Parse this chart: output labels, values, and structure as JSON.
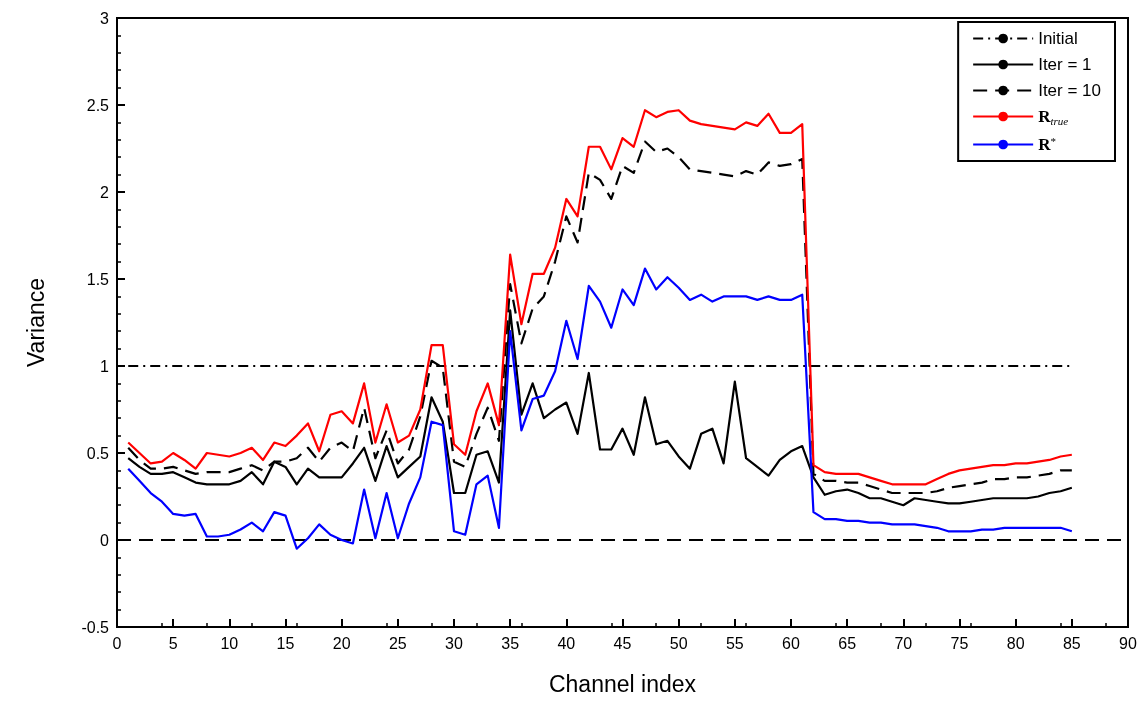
{
  "chart_data": {
    "type": "line",
    "xlabel": "Channel index",
    "ylabel": "Variance",
    "xlim": [
      0,
      90
    ],
    "xticks": [
      0,
      5,
      10,
      15,
      20,
      25,
      30,
      35,
      40,
      45,
      50,
      55,
      60,
      65,
      70,
      75,
      80,
      85,
      90
    ],
    "ylim": [
      -0.5,
      3
    ],
    "yticks": [
      -0.5,
      0,
      0.5,
      1,
      1.5,
      2,
      2.5,
      3
    ],
    "grid": false,
    "legend": "top right",
    "marker": "none",
    "x": [
      1,
      2,
      3,
      4,
      5,
      6,
      7,
      8,
      9,
      10,
      11,
      12,
      13,
      14,
      15,
      16,
      17,
      18,
      19,
      20,
      21,
      22,
      23,
      24,
      25,
      26,
      27,
      28,
      29,
      30,
      31,
      32,
      33,
      34,
      35,
      36,
      37,
      38,
      39,
      40,
      41,
      42,
      43,
      44,
      45,
      46,
      47,
      48,
      49,
      50,
      51,
      52,
      53,
      54,
      55,
      56,
      57,
      58,
      59,
      60,
      61,
      62,
      63,
      64,
      65,
      66,
      67,
      68,
      69,
      70,
      71,
      72,
      73,
      74,
      75,
      76,
      77,
      78,
      79,
      80,
      81,
      82,
      83,
      84,
      85
    ],
    "ref_lines": [
      {
        "axis": "y",
        "value": 0,
        "label": null,
        "color": "#000000",
        "line_style": "dashed"
      }
    ],
    "series": [
      {
        "name": "Initial",
        "color": "#000000",
        "line_style": "dashdot",
        "x": [
          1,
          85
        ],
        "values": [
          1,
          1
        ]
      },
      {
        "name": "Iter = 1",
        "color": "#000000",
        "line_style": "solid",
        "values": [
          0.47,
          0.42,
          0.38,
          0.38,
          0.39,
          0.36,
          0.33,
          0.32,
          0.32,
          0.32,
          0.34,
          0.39,
          0.32,
          0.45,
          0.42,
          0.32,
          0.41,
          0.36,
          0.36,
          0.36,
          0.44,
          0.53,
          0.34,
          0.54,
          0.36,
          0.42,
          0.48,
          0.82,
          0.68,
          0.27,
          0.27,
          0.49,
          0.51,
          0.33,
          1.32,
          0.72,
          0.9,
          0.7,
          0.75,
          0.79,
          0.61,
          0.96,
          0.52,
          0.52,
          0.64,
          0.49,
          0.82,
          0.55,
          0.57,
          0.48,
          0.41,
          0.61,
          0.64,
          0.44,
          0.91,
          0.47,
          0.42,
          0.37,
          0.46,
          0.51,
          0.54,
          0.36,
          0.26,
          0.28,
          0.29,
          0.27,
          0.24,
          0.24,
          0.22,
          0.2,
          0.24,
          0.23,
          0.22,
          0.21,
          0.21,
          0.22,
          0.23,
          0.24,
          0.24,
          0.24,
          0.24,
          0.25,
          0.27,
          0.28,
          0.3
        ]
      },
      {
        "name": "Iter = 10",
        "color": "#000000",
        "line_style": "dashed",
        "values": [
          0.53,
          0.46,
          0.41,
          0.41,
          0.42,
          0.4,
          0.38,
          0.39,
          0.39,
          0.39,
          0.41,
          0.43,
          0.4,
          0.45,
          0.45,
          0.47,
          0.53,
          0.45,
          0.53,
          0.56,
          0.51,
          0.76,
          0.47,
          0.63,
          0.44,
          0.52,
          0.71,
          1.03,
          0.99,
          0.45,
          0.42,
          0.61,
          0.76,
          0.57,
          1.47,
          1.13,
          1.33,
          1.4,
          1.6,
          1.86,
          1.71,
          2.11,
          2.07,
          1.96,
          2.15,
          2.11,
          2.29,
          2.23,
          2.25,
          2.2,
          2.13,
          2.12,
          2.11,
          2.1,
          2.09,
          2.12,
          2.1,
          2.17,
          2.15,
          2.16,
          2.19,
          0.38,
          0.34,
          0.34,
          0.33,
          0.33,
          0.31,
          0.29,
          0.27,
          0.27,
          0.27,
          0.27,
          0.28,
          0.3,
          0.31,
          0.32,
          0.33,
          0.35,
          0.35,
          0.36,
          0.36,
          0.37,
          0.38,
          0.4,
          0.4
        ]
      },
      {
        "name": "R$_{true}$",
        "color": "#ff0000",
        "line_style": "solid",
        "values": [
          0.56,
          0.5,
          0.44,
          0.45,
          0.5,
          0.46,
          0.41,
          0.5,
          0.49,
          0.48,
          0.5,
          0.53,
          0.46,
          0.56,
          0.54,
          0.6,
          0.67,
          0.51,
          0.72,
          0.74,
          0.67,
          0.9,
          0.56,
          0.78,
          0.56,
          0.6,
          0.75,
          1.12,
          1.12,
          0.55,
          0.49,
          0.74,
          0.9,
          0.66,
          1.64,
          1.24,
          1.53,
          1.53,
          1.68,
          1.96,
          1.86,
          2.26,
          2.26,
          2.13,
          2.31,
          2.26,
          2.47,
          2.43,
          2.46,
          2.47,
          2.41,
          2.39,
          2.38,
          2.37,
          2.36,
          2.4,
          2.38,
          2.45,
          2.34,
          2.34,
          2.39,
          0.43,
          0.39,
          0.38,
          0.38,
          0.38,
          0.36,
          0.34,
          0.32,
          0.32,
          0.32,
          0.32,
          0.35,
          0.38,
          0.4,
          0.41,
          0.42,
          0.43,
          0.43,
          0.44,
          0.44,
          0.45,
          0.46,
          0.48,
          0.49
        ]
      },
      {
        "name": "R$^{*}$",
        "color": "#0000ff",
        "line_style": "solid",
        "values": [
          0.41,
          0.34,
          0.27,
          0.22,
          0.15,
          0.14,
          0.15,
          0.02,
          0.02,
          0.03,
          0.06,
          0.1,
          0.05,
          0.16,
          0.14,
          -0.05,
          0.01,
          0.09,
          0.03,
          0.0,
          -0.02,
          0.29,
          0.01,
          0.27,
          0.01,
          0.21,
          0.36,
          0.68,
          0.66,
          0.05,
          0.03,
          0.32,
          0.37,
          0.07,
          1.2,
          0.63,
          0.81,
          0.83,
          0.97,
          1.26,
          1.04,
          1.46,
          1.37,
          1.22,
          1.44,
          1.35,
          1.56,
          1.44,
          1.51,
          1.45,
          1.38,
          1.41,
          1.37,
          1.4,
          1.4,
          1.4,
          1.38,
          1.4,
          1.38,
          1.38,
          1.41,
          0.16,
          0.12,
          0.12,
          0.11,
          0.11,
          0.1,
          0.1,
          0.09,
          0.09,
          0.09,
          0.08,
          0.07,
          0.05,
          0.05,
          0.05,
          0.06,
          0.06,
          0.07,
          0.07,
          0.07,
          0.07,
          0.07,
          0.07,
          0.05
        ]
      }
    ]
  }
}
